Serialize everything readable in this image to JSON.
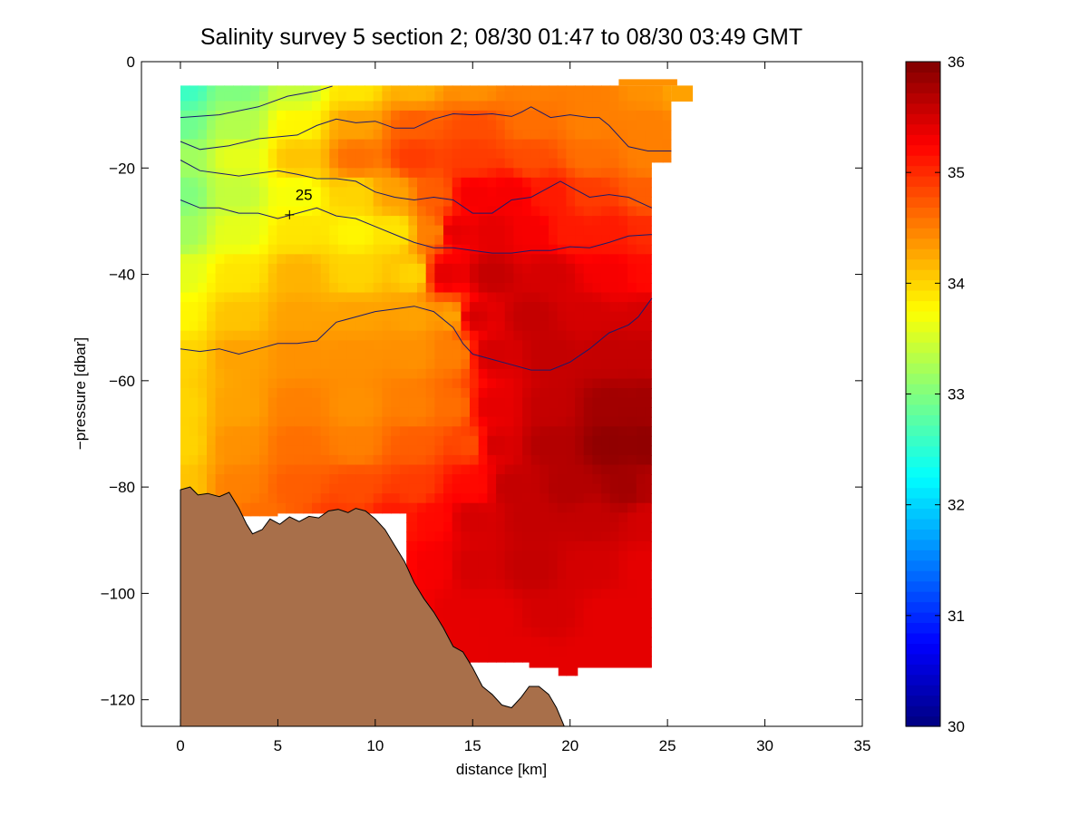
{
  "chart_data": {
    "type": "heatmap",
    "title": "Salinity survey 5 section 2; 08/30 01:47 to 08/30 03:49 GMT",
    "xlabel": "distance [km]",
    "ylabel": "−pressure [dbar]",
    "xlim": [
      -2,
      35
    ],
    "ylim": [
      -125,
      0
    ],
    "xticks": [
      0,
      5,
      10,
      15,
      20,
      25,
      30,
      35
    ],
    "yticks": [
      0,
      -20,
      -40,
      -60,
      -80,
      -100,
      -120
    ],
    "colorbar": {
      "range": [
        30,
        36
      ],
      "ticks": [
        30,
        31,
        32,
        33,
        34,
        35,
        36
      ],
      "colormap": "jet"
    },
    "bottom_color": "#a86f4a",
    "contour_color": "#1a1a6e",
    "contour_labels": [
      {
        "text": "25",
        "x": 5.9,
        "y": -26
      }
    ],
    "mask_outline": [
      [
        0,
        -4.5
      ],
      [
        25.2,
        -4.5
      ],
      [
        25.2,
        -19
      ],
      [
        24.2,
        -19
      ],
      [
        24.2,
        -114
      ],
      [
        20.4,
        -114
      ],
      [
        20.4,
        -115.5
      ],
      [
        19.4,
        -115.5
      ],
      [
        19.4,
        -114
      ],
      [
        17.9,
        -114
      ],
      [
        17.9,
        -113
      ],
      [
        14.9,
        -113
      ],
      [
        14.9,
        -114
      ],
      [
        14.0,
        -114
      ],
      [
        14.0,
        -111
      ],
      [
        12.5,
        -111
      ],
      [
        12.5,
        -101
      ],
      [
        11.6,
        -101
      ],
      [
        11.6,
        -85
      ],
      [
        5.0,
        -85
      ],
      [
        5.0,
        -85.5
      ],
      [
        0,
        -85.5
      ]
    ],
    "mask_extra": [
      [
        [
          22.5,
          -3.3
        ],
        [
          25.5,
          -3.3
        ],
        [
          25.5,
          -4.5
        ],
        [
          22.5,
          -4.5
        ]
      ],
      [
        [
          25.2,
          -4.5
        ],
        [
          26.3,
          -4.5
        ],
        [
          26.3,
          -7.5
        ],
        [
          25.2,
          -7.5
        ]
      ]
    ],
    "salinity_field": [
      [
        0,
        -5,
        32.6
      ],
      [
        3,
        -5,
        33.0
      ],
      [
        6,
        -5,
        33.4
      ],
      [
        9,
        -5,
        33.9
      ],
      [
        12,
        -5,
        34.2
      ],
      [
        15,
        -5,
        34.4
      ],
      [
        18,
        -5,
        34.5
      ],
      [
        21,
        -5,
        34.5
      ],
      [
        24,
        -5,
        34.4
      ],
      [
        25.5,
        -5,
        34.3
      ],
      [
        0,
        -12,
        32.9
      ],
      [
        3,
        -12,
        33.3
      ],
      [
        6,
        -12,
        33.8
      ],
      [
        9,
        -12,
        34.3
      ],
      [
        12,
        -12,
        34.7
      ],
      [
        15,
        -12,
        34.8
      ],
      [
        18,
        -12,
        34.6
      ],
      [
        21,
        -12,
        34.5
      ],
      [
        24,
        -12,
        34.5
      ],
      [
        0,
        -18,
        33.2
      ],
      [
        3,
        -18,
        33.6
      ],
      [
        6,
        -18,
        34.1
      ],
      [
        9,
        -18,
        34.6
      ],
      [
        12,
        -18,
        34.9
      ],
      [
        15,
        -18,
        34.9
      ],
      [
        18,
        -18,
        34.8
      ],
      [
        21,
        -18,
        34.6
      ],
      [
        24,
        -18,
        34.5
      ],
      [
        0,
        -25,
        33.0
      ],
      [
        3,
        -25,
        33.4
      ],
      [
        6,
        -25,
        33.7
      ],
      [
        9,
        -25,
        34.0
      ],
      [
        11,
        -25,
        34.3
      ],
      [
        13,
        -25,
        34.7
      ],
      [
        15,
        -25,
        35.3
      ],
      [
        17,
        -25,
        35.3
      ],
      [
        19,
        -25,
        35.1
      ],
      [
        21,
        -25,
        34.9
      ],
      [
        24,
        -25,
        34.7
      ],
      [
        0,
        -32,
        33.2
      ],
      [
        3,
        -32,
        33.6
      ],
      [
        6,
        -32,
        33.9
      ],
      [
        9,
        -32,
        33.8
      ],
      [
        11,
        -32,
        33.9
      ],
      [
        13,
        -32,
        34.5
      ],
      [
        14,
        -32,
        35.4
      ],
      [
        16,
        -32,
        35.4
      ],
      [
        18,
        -32,
        35.3
      ],
      [
        20,
        -32,
        35.1
      ],
      [
        22,
        -32,
        35.1
      ],
      [
        24,
        -32,
        35.0
      ],
      [
        0,
        -40,
        33.6
      ],
      [
        3,
        -40,
        33.9
      ],
      [
        6,
        -40,
        34.2
      ],
      [
        9,
        -40,
        34.0
      ],
      [
        12,
        -40,
        34.0
      ],
      [
        13.5,
        -40,
        35.4
      ],
      [
        16,
        -40,
        35.6
      ],
      [
        19,
        -40,
        35.5
      ],
      [
        22,
        -40,
        35.3
      ],
      [
        24,
        -40,
        35.2
      ],
      [
        0,
        -48,
        33.8
      ],
      [
        3,
        -48,
        34.1
      ],
      [
        6,
        -48,
        34.3
      ],
      [
        9,
        -48,
        34.3
      ],
      [
        12,
        -48,
        34.3
      ],
      [
        14,
        -48,
        34.3
      ],
      [
        15,
        -48,
        35.5
      ],
      [
        18,
        -48,
        35.6
      ],
      [
        21,
        -48,
        35.5
      ],
      [
        24,
        -48,
        35.5
      ],
      [
        0,
        -55,
        34.0
      ],
      [
        3,
        -55,
        34.3
      ],
      [
        6,
        -55,
        34.4
      ],
      [
        9,
        -55,
        34.4
      ],
      [
        12,
        -55,
        34.4
      ],
      [
        14,
        -55,
        34.5
      ],
      [
        16,
        -55,
        35.5
      ],
      [
        19,
        -55,
        35.6
      ],
      [
        22,
        -55,
        35.6
      ],
      [
        24,
        -55,
        35.6
      ],
      [
        0,
        -65,
        34.0
      ],
      [
        3,
        -65,
        34.3
      ],
      [
        6,
        -65,
        34.5
      ],
      [
        9,
        -65,
        34.4
      ],
      [
        12,
        -65,
        34.5
      ],
      [
        14,
        -65,
        34.6
      ],
      [
        16,
        -65,
        35.4
      ],
      [
        19,
        -65,
        35.6
      ],
      [
        22,
        -65,
        35.8
      ],
      [
        24,
        -65,
        35.8
      ],
      [
        0,
        -72,
        34.0
      ],
      [
        3,
        -72,
        34.4
      ],
      [
        6,
        -72,
        34.6
      ],
      [
        9,
        -72,
        34.5
      ],
      [
        12,
        -72,
        34.7
      ],
      [
        15,
        -72,
        34.8
      ],
      [
        16,
        -72,
        35.5
      ],
      [
        19,
        -72,
        35.7
      ],
      [
        22,
        -72,
        35.9
      ],
      [
        24,
        -72,
        35.9
      ],
      [
        0,
        -80,
        34.1
      ],
      [
        3,
        -80,
        34.5
      ],
      [
        6,
        -80,
        34.7
      ],
      [
        9,
        -80,
        34.8
      ],
      [
        12,
        -80,
        34.9
      ],
      [
        15,
        -80,
        35.2
      ],
      [
        17,
        -80,
        35.6
      ],
      [
        20,
        -80,
        35.7
      ],
      [
        23,
        -80,
        35.8
      ],
      [
        24,
        -80,
        35.7
      ],
      [
        0,
        -86,
        34.2
      ],
      [
        4,
        -86,
        34.6
      ],
      [
        8,
        -86,
        34.9
      ],
      [
        11,
        -86,
        35.1
      ],
      [
        13,
        -86,
        35.2
      ],
      [
        15,
        -86,
        35.5
      ],
      [
        18,
        -86,
        35.6
      ],
      [
        21,
        -86,
        35.6
      ],
      [
        24,
        -86,
        35.5
      ],
      [
        11,
        -95,
        35.2
      ],
      [
        13,
        -95,
        35.3
      ],
      [
        15,
        -95,
        35.5
      ],
      [
        18,
        -95,
        35.6
      ],
      [
        21,
        -95,
        35.5
      ],
      [
        24,
        -95,
        35.4
      ],
      [
        12,
        -104,
        35.3
      ],
      [
        14,
        -104,
        35.4
      ],
      [
        16,
        -104,
        35.4
      ],
      [
        19,
        -104,
        35.5
      ],
      [
        22,
        -104,
        35.4
      ],
      [
        24,
        -104,
        35.4
      ],
      [
        13,
        -112,
        35.4
      ],
      [
        15,
        -112,
        35.4
      ],
      [
        18,
        -112,
        35.4
      ],
      [
        21,
        -112,
        35.4
      ],
      [
        24,
        -112,
        35.4
      ],
      [
        14,
        -116,
        35.4
      ],
      [
        18,
        -116,
        35.4
      ],
      [
        21,
        -116,
        35.4
      ],
      [
        24,
        -116,
        35.4
      ]
    ],
    "contours": [
      [
        [
          0,
          -10.5
        ],
        [
          2,
          -10
        ],
        [
          4,
          -8.5
        ],
        [
          5.5,
          -6.5
        ],
        [
          7,
          -5.5
        ],
        [
          7.8,
          -4.6
        ]
      ],
      [
        [
          0,
          -15
        ],
        [
          1,
          -16.5
        ],
        [
          2.5,
          -15.8
        ],
        [
          4,
          -14.5
        ],
        [
          6,
          -13.8
        ],
        [
          7,
          -12
        ],
        [
          8,
          -10.8
        ],
        [
          9,
          -11.5
        ],
        [
          10,
          -11.2
        ],
        [
          11,
          -12.5
        ],
        [
          12,
          -12.5
        ],
        [
          13,
          -10.8
        ],
        [
          14,
          -9.8
        ],
        [
          15,
          -10
        ],
        [
          16,
          -9.8
        ],
        [
          17,
          -10.3
        ],
        [
          17.5,
          -9.5
        ],
        [
          18,
          -8.5
        ],
        [
          19,
          -10.5
        ],
        [
          20,
          -10
        ],
        [
          21,
          -10.5
        ],
        [
          21.5,
          -10.5
        ],
        [
          22,
          -12
        ],
        [
          23,
          -16
        ],
        [
          24,
          -16.8
        ],
        [
          25.2,
          -16.8
        ]
      ],
      [
        [
          0,
          -18.5
        ],
        [
          1,
          -20.5
        ],
        [
          2,
          -21
        ],
        [
          3,
          -21.5
        ],
        [
          4,
          -21
        ],
        [
          5,
          -20.5
        ],
        [
          6,
          -21.2
        ],
        [
          7,
          -22
        ],
        [
          8,
          -22
        ],
        [
          9,
          -22.5
        ],
        [
          10,
          -24.5
        ],
        [
          11,
          -25.5
        ],
        [
          12,
          -26
        ],
        [
          13,
          -25.5
        ],
        [
          14,
          -26
        ],
        [
          15,
          -28.5
        ],
        [
          16,
          -28.5
        ],
        [
          17,
          -26
        ],
        [
          18,
          -25.5
        ],
        [
          19,
          -23.5
        ],
        [
          19.5,
          -22.5
        ],
        [
          20,
          -23.5
        ],
        [
          21,
          -25.5
        ],
        [
          22,
          -25
        ],
        [
          23,
          -25.5
        ],
        [
          24.2,
          -27.5
        ]
      ],
      [
        [
          0,
          -26
        ],
        [
          1,
          -27.5
        ],
        [
          2,
          -27.5
        ],
        [
          3,
          -28.5
        ],
        [
          4,
          -28.5
        ],
        [
          5,
          -29.5
        ],
        [
          6,
          -28.5
        ],
        [
          7,
          -27.5
        ],
        [
          8,
          -29
        ],
        [
          9,
          -29.5
        ],
        [
          10,
          -31
        ],
        [
          11,
          -32.5
        ],
        [
          12,
          -34
        ],
        [
          13,
          -35
        ],
        [
          14,
          -35
        ],
        [
          15,
          -35.5
        ],
        [
          16,
          -36
        ],
        [
          17,
          -36
        ],
        [
          18,
          -35.5
        ],
        [
          19,
          -35.5
        ],
        [
          20,
          -34.8
        ],
        [
          21,
          -35
        ],
        [
          22,
          -34
        ],
        [
          23,
          -32.8
        ],
        [
          24.2,
          -32.5
        ]
      ],
      [
        [
          0,
          -54
        ],
        [
          1,
          -54.5
        ],
        [
          2,
          -54
        ],
        [
          3,
          -55
        ],
        [
          4,
          -54
        ],
        [
          5,
          -53
        ],
        [
          6,
          -53
        ],
        [
          7,
          -52.5
        ],
        [
          8,
          -49
        ],
        [
          9,
          -48
        ],
        [
          10,
          -47
        ],
        [
          11,
          -46.5
        ],
        [
          12,
          -46
        ],
        [
          13,
          -47
        ],
        [
          14,
          -50
        ],
        [
          14.5,
          -53
        ],
        [
          15,
          -55
        ],
        [
          16,
          -56
        ],
        [
          17,
          -57
        ],
        [
          18,
          -58
        ],
        [
          19,
          -58
        ],
        [
          20,
          -56.5
        ],
        [
          21,
          -54
        ],
        [
          22,
          -51
        ],
        [
          23,
          -49.5
        ],
        [
          23.5,
          -48
        ],
        [
          24.2,
          -44.5
        ]
      ]
    ],
    "bathymetry": [
      [
        0,
        -125
      ],
      [
        0,
        -80.5
      ],
      [
        0.5,
        -80
      ],
      [
        0.9,
        -81.5
      ],
      [
        1.4,
        -81.2
      ],
      [
        2.0,
        -81.8
      ],
      [
        2.5,
        -81
      ],
      [
        3.0,
        -84
      ],
      [
        3.4,
        -87
      ],
      [
        3.7,
        -88.8
      ],
      [
        4.2,
        -88
      ],
      [
        4.6,
        -86
      ],
      [
        5.1,
        -87
      ],
      [
        5.6,
        -85.6
      ],
      [
        6.1,
        -86.5
      ],
      [
        6.6,
        -85.5
      ],
      [
        7.1,
        -85.8
      ],
      [
        7.6,
        -84.5
      ],
      [
        8.1,
        -84.2
      ],
      [
        8.6,
        -84.8
      ],
      [
        9.0,
        -84
      ],
      [
        9.5,
        -84.5
      ],
      [
        10.0,
        -86
      ],
      [
        10.5,
        -88
      ],
      [
        11.0,
        -91
      ],
      [
        11.5,
        -94
      ],
      [
        12.0,
        -98
      ],
      [
        12.5,
        -101
      ],
      [
        13.0,
        -103.5
      ],
      [
        13.5,
        -106.5
      ],
      [
        14.0,
        -110
      ],
      [
        14.5,
        -111
      ],
      [
        15.0,
        -114
      ],
      [
        15.5,
        -117.5
      ],
      [
        16.0,
        -119
      ],
      [
        16.5,
        -121
      ],
      [
        17.0,
        -121.5
      ],
      [
        17.5,
        -119.5
      ],
      [
        17.9,
        -117.5
      ],
      [
        18.4,
        -117.5
      ],
      [
        18.9,
        -119
      ],
      [
        19.3,
        -121.5
      ],
      [
        19.7,
        -125
      ]
    ]
  }
}
